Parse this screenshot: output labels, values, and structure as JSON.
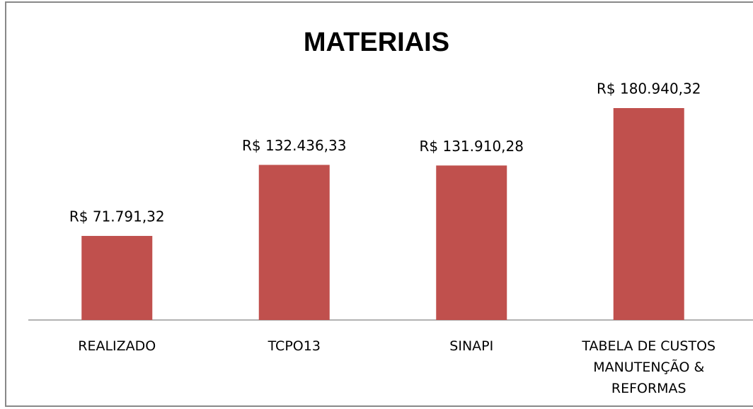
{
  "chart_data": {
    "type": "bar",
    "title": "MATERIAIS",
    "categories": [
      "REALIZADO",
      "TCPO13",
      "SINAPI",
      "TABELA DE CUSTOS MANUTENÇÃO & REFORMAS"
    ],
    "values": [
      71791.32,
      132436.33,
      131910.28,
      180940.32
    ],
    "value_labels": [
      "R$ 71.791,32",
      "R$ 132.436,33",
      "R$ 131.910,28",
      "R$ 180.940,32"
    ],
    "color": "#c0504d"
  }
}
